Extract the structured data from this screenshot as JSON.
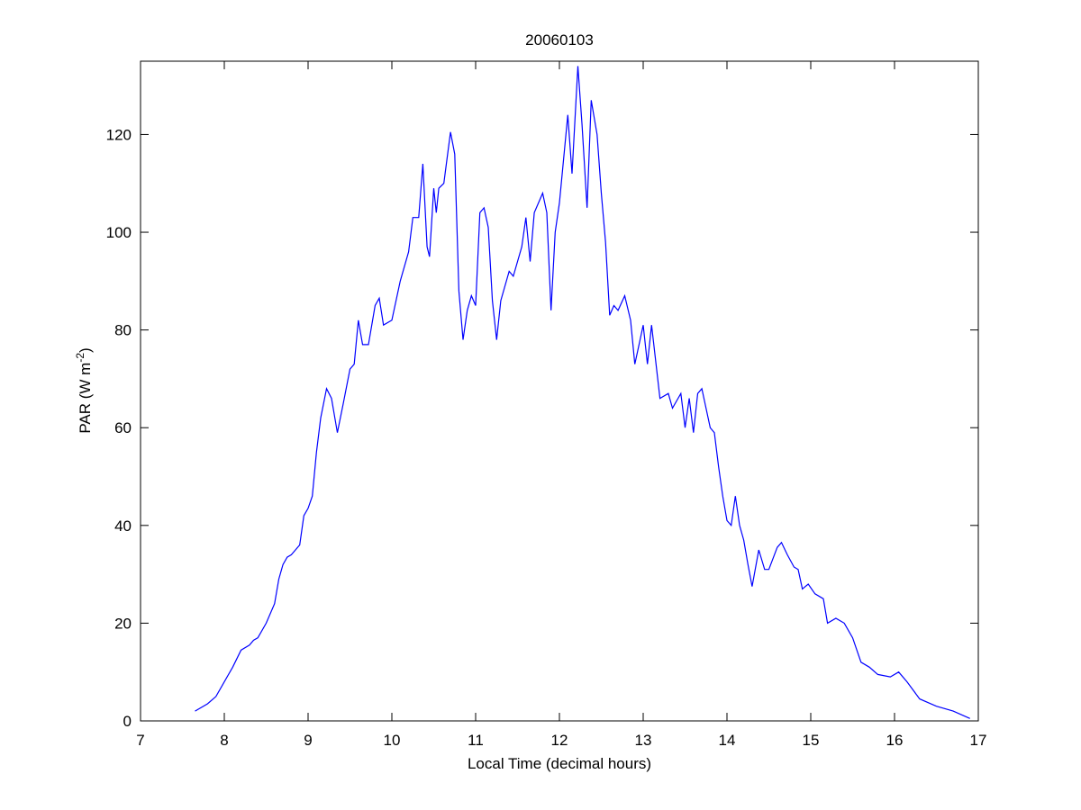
{
  "chart_data": {
    "type": "line",
    "title": "20060103",
    "xlabel": "Local Time (decimal hours)",
    "ylabel": {
      "text": "PAR (W m",
      "sup": "-2",
      "end": ")"
    },
    "xlim": [
      7,
      17
    ],
    "xticks": [
      7,
      8,
      9,
      10,
      11,
      12,
      13,
      14,
      15,
      16,
      17
    ],
    "ylim": [
      0,
      135
    ],
    "yticks": [
      0,
      20,
      40,
      60,
      80,
      100,
      120
    ],
    "series": [
      {
        "color": "#0000ff",
        "x": [
          7.65,
          7.8,
          7.9,
          8.0,
          8.1,
          8.2,
          8.3,
          8.35,
          8.4,
          8.5,
          8.6,
          8.65,
          8.7,
          8.75,
          8.8,
          8.85,
          8.9,
          8.95,
          9.0,
          9.05,
          9.1,
          9.15,
          9.22,
          9.28,
          9.35,
          9.42,
          9.5,
          9.55,
          9.6,
          9.65,
          9.72,
          9.8,
          9.85,
          9.9,
          10.0,
          10.1,
          10.2,
          10.25,
          10.32,
          10.37,
          10.42,
          10.45,
          10.5,
          10.53,
          10.56,
          10.62,
          10.65,
          10.7,
          10.75,
          10.8,
          10.85,
          10.9,
          10.95,
          11.0,
          11.05,
          11.1,
          11.15,
          11.2,
          11.25,
          11.3,
          11.4,
          11.45,
          11.55,
          11.6,
          11.65,
          11.7,
          11.8,
          11.85,
          11.9,
          11.95,
          12.0,
          12.1,
          12.15,
          12.22,
          12.27,
          12.33,
          12.38,
          12.45,
          12.5,
          12.55,
          12.6,
          12.65,
          12.7,
          12.78,
          12.85,
          12.9,
          12.95,
          13.0,
          13.05,
          13.1,
          13.2,
          13.3,
          13.35,
          13.45,
          13.5,
          13.55,
          13.6,
          13.65,
          13.7,
          13.8,
          13.85,
          13.9,
          13.95,
          14.0,
          14.05,
          14.1,
          14.15,
          14.2,
          14.25,
          14.3,
          14.38,
          14.45,
          14.5,
          14.6,
          14.65,
          14.72,
          14.8,
          14.85,
          14.9,
          14.97,
          15.05,
          15.15,
          15.2,
          15.3,
          15.4,
          15.5,
          15.6,
          15.7,
          15.8,
          15.95,
          16.05,
          16.15,
          16.3,
          16.5,
          16.7,
          16.9
        ],
        "values": [
          2,
          3.5,
          5,
          8,
          11,
          14.5,
          15.5,
          16.5,
          17,
          20,
          24,
          29,
          32,
          33.5,
          34,
          35,
          36,
          42,
          43.5,
          46,
          55,
          62,
          68,
          66,
          59,
          65,
          72,
          73,
          82,
          77,
          77,
          85,
          86.5,
          81,
          82,
          90,
          96,
          103,
          103,
          114,
          97,
          95,
          109,
          104,
          109,
          110,
          114,
          120.5,
          116,
          88,
          78,
          84,
          87,
          85,
          104,
          105,
          101,
          86,
          78,
          86,
          92,
          91,
          97,
          103,
          94,
          104,
          108,
          104,
          84,
          100,
          106,
          124,
          112,
          134,
          122,
          105,
          127,
          120,
          108,
          98,
          83,
          85,
          84,
          87,
          82,
          73,
          77,
          81,
          73,
          81,
          66,
          67,
          64,
          67,
          60,
          66,
          59,
          67,
          68,
          60,
          59,
          52,
          46,
          41,
          40,
          46,
          40,
          37,
          32,
          27.5,
          35,
          31,
          31,
          35.5,
          36.5,
          34,
          31.5,
          31,
          27,
          28,
          26,
          25,
          20,
          21,
          20,
          17,
          12,
          11,
          9.5,
          9,
          10,
          8,
          4.5,
          3,
          2,
          0.5
        ]
      }
    ]
  }
}
